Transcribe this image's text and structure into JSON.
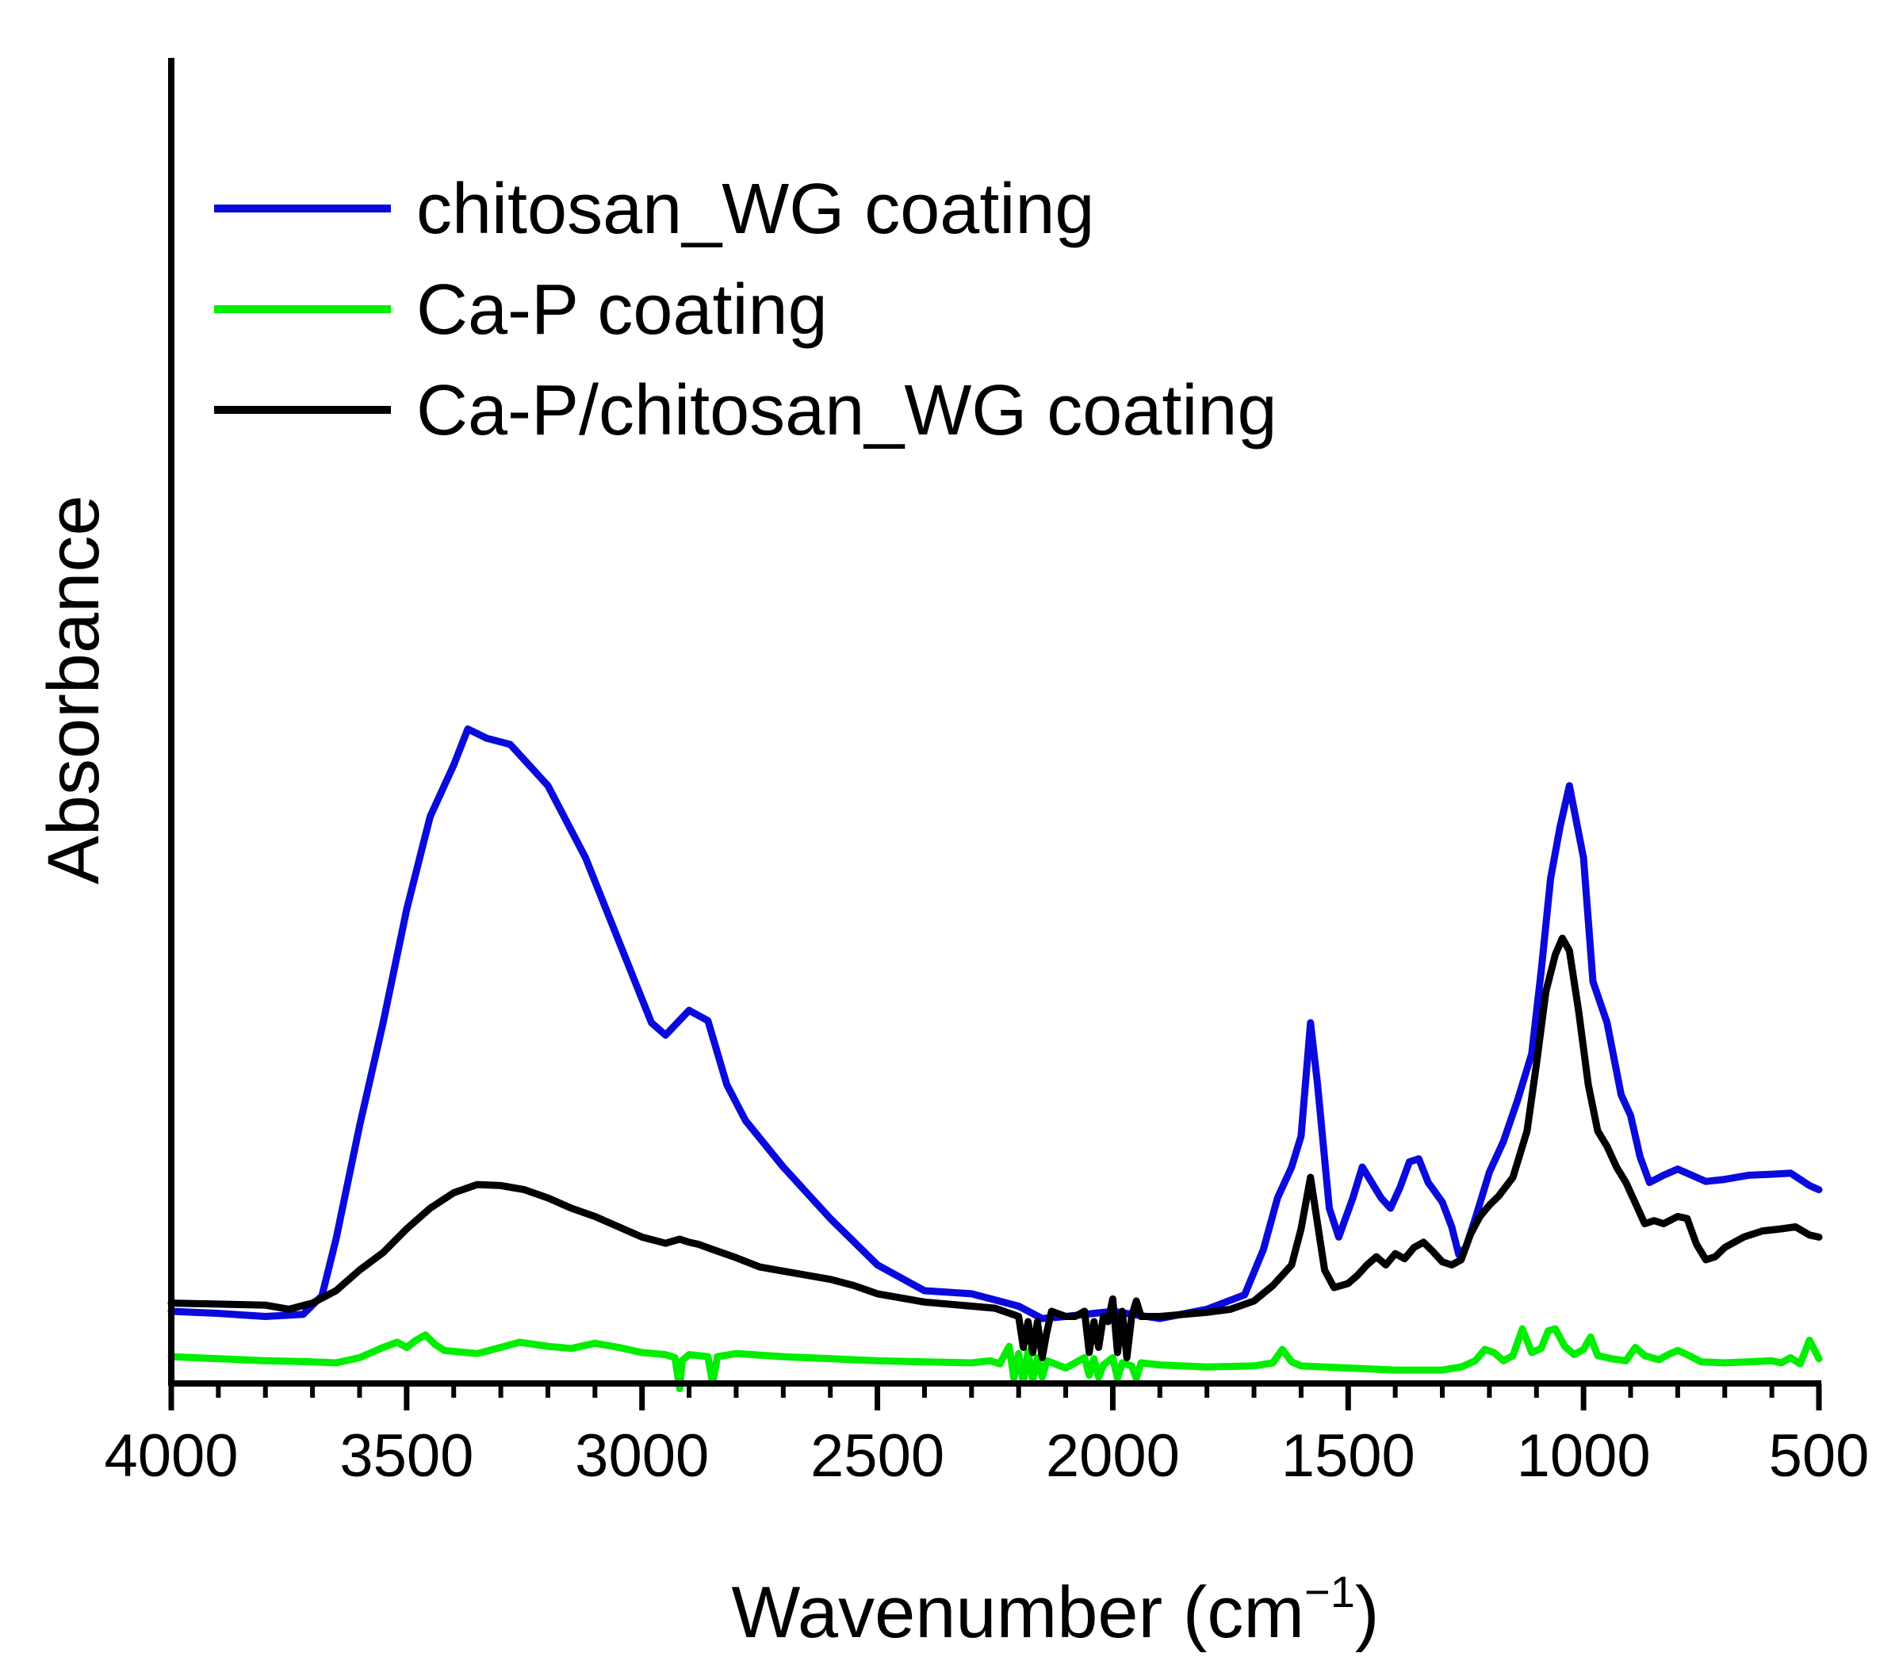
{
  "chart_data": {
    "type": "line",
    "title": "",
    "xlabel": "Wavenumber (cm",
    "xlabel_superscript": "−1",
    "xlabel_close": ")",
    "ylabel": "Absorbance",
    "xlim": [
      4000,
      500
    ],
    "ylim": [
      0,
      100
    ],
    "x_ticks": [
      4000,
      3500,
      3000,
      2500,
      2000,
      1500,
      1000,
      500
    ],
    "y_ticks_visible": false,
    "grid": false,
    "legend_position": "top-left",
    "series": [
      {
        "name": "chitosan_WG coating",
        "color": "#0a0adc",
        "points": [
          [
            4000,
            7.0
          ],
          [
            3900,
            6.8
          ],
          [
            3800,
            6.5
          ],
          [
            3720,
            6.7
          ],
          [
            3680,
            8.5
          ],
          [
            3650,
            14
          ],
          [
            3600,
            25
          ],
          [
            3550,
            35
          ],
          [
            3500,
            46
          ],
          [
            3450,
            55
          ],
          [
            3400,
            60
          ],
          [
            3370,
            63.5
          ],
          [
            3330,
            62.6
          ],
          [
            3280,
            62
          ],
          [
            3200,
            58
          ],
          [
            3120,
            51
          ],
          [
            3050,
            43
          ],
          [
            2980,
            35
          ],
          [
            2950,
            33.8
          ],
          [
            2900,
            36.2
          ],
          [
            2860,
            35.2
          ],
          [
            2820,
            29
          ],
          [
            2780,
            25.5
          ],
          [
            2700,
            21
          ],
          [
            2600,
            16
          ],
          [
            2500,
            11.5
          ],
          [
            2400,
            9
          ],
          [
            2300,
            8.7
          ],
          [
            2200,
            7.5
          ],
          [
            2150,
            6.3
          ],
          [
            2100,
            6.5
          ],
          [
            2000,
            7.0
          ],
          [
            1900,
            6.3
          ],
          [
            1800,
            7.2
          ],
          [
            1720,
            8.6
          ],
          [
            1680,
            13
          ],
          [
            1650,
            18
          ],
          [
            1620,
            21
          ],
          [
            1600,
            24
          ],
          [
            1580,
            35
          ],
          [
            1565,
            29
          ],
          [
            1540,
            17
          ],
          [
            1520,
            14.2
          ],
          [
            1490,
            18
          ],
          [
            1470,
            21
          ],
          [
            1450,
            19.5
          ],
          [
            1430,
            18
          ],
          [
            1410,
            17
          ],
          [
            1390,
            19
          ],
          [
            1370,
            21.5
          ],
          [
            1350,
            21.8
          ],
          [
            1330,
            19.5
          ],
          [
            1300,
            17.6
          ],
          [
            1280,
            15.2
          ],
          [
            1265,
            12.5
          ],
          [
            1250,
            13.2
          ],
          [
            1230,
            16
          ],
          [
            1200,
            20.5
          ],
          [
            1170,
            23.5
          ],
          [
            1140,
            27.5
          ],
          [
            1110,
            32
          ],
          [
            1090,
            40
          ],
          [
            1070,
            49
          ],
          [
            1050,
            54
          ],
          [
            1030,
            58
          ],
          [
            1000,
            51
          ],
          [
            980,
            39
          ],
          [
            950,
            35
          ],
          [
            920,
            28
          ],
          [
            900,
            26
          ],
          [
            880,
            22
          ],
          [
            860,
            19.5
          ],
          [
            830,
            20.2
          ],
          [
            800,
            20.8
          ],
          [
            770,
            20.2
          ],
          [
            740,
            19.6
          ],
          [
            700,
            19.8
          ],
          [
            650,
            20.2
          ],
          [
            600,
            20.3
          ],
          [
            560,
            20.4
          ],
          [
            520,
            19.2
          ],
          [
            500,
            18.8
          ]
        ]
      },
      {
        "name": "Ca-P coating",
        "color": "#00ee00",
        "points": [
          [
            4000,
            2.6
          ],
          [
            3900,
            2.4
          ],
          [
            3800,
            2.2
          ],
          [
            3700,
            2.1
          ],
          [
            3650,
            2.0
          ],
          [
            3600,
            2.5
          ],
          [
            3550,
            3.5
          ],
          [
            3520,
            4.0
          ],
          [
            3500,
            3.5
          ],
          [
            3480,
            4.2
          ],
          [
            3460,
            4.7
          ],
          [
            3440,
            3.8
          ],
          [
            3420,
            3.2
          ],
          [
            3350,
            2.9
          ],
          [
            3300,
            3.5
          ],
          [
            3260,
            4.0
          ],
          [
            3200,
            3.6
          ],
          [
            3150,
            3.4
          ],
          [
            3100,
            3.9
          ],
          [
            3050,
            3.5
          ],
          [
            3000,
            3.0
          ],
          [
            2950,
            2.8
          ],
          [
            2930,
            2.5
          ],
          [
            2920,
            -0.5
          ],
          [
            2915,
            2.2
          ],
          [
            2900,
            2.8
          ],
          [
            2880,
            2.7
          ],
          [
            2860,
            2.6
          ],
          [
            2850,
            0.0
          ],
          [
            2840,
            2.6
          ],
          [
            2800,
            2.9
          ],
          [
            2700,
            2.6
          ],
          [
            2600,
            2.4
          ],
          [
            2500,
            2.2
          ],
          [
            2400,
            2.1
          ],
          [
            2300,
            2.0
          ],
          [
            2260,
            2.2
          ],
          [
            2240,
            1.9
          ],
          [
            2220,
            3.6
          ],
          [
            2210,
            0.5
          ],
          [
            2200,
            2.9
          ],
          [
            2190,
            0.1
          ],
          [
            2180,
            3.1
          ],
          [
            2170,
            0.3
          ],
          [
            2160,
            2.5
          ],
          [
            2150,
            0.6
          ],
          [
            2140,
            2.2
          ],
          [
            2100,
            1.5
          ],
          [
            2060,
            2.5
          ],
          [
            2050,
            0.8
          ],
          [
            2040,
            2.4
          ],
          [
            2030,
            0.6
          ],
          [
            2020,
            1.8
          ],
          [
            2000,
            2.5
          ],
          [
            1990,
            0.5
          ],
          [
            1980,
            2.0
          ],
          [
            1960,
            1.7
          ],
          [
            1950,
            0.5
          ],
          [
            1940,
            2.0
          ],
          [
            1900,
            1.8
          ],
          [
            1800,
            1.6
          ],
          [
            1700,
            1.7
          ],
          [
            1660,
            2.0
          ],
          [
            1640,
            3.3
          ],
          [
            1620,
            2.1
          ],
          [
            1600,
            1.7
          ],
          [
            1500,
            1.5
          ],
          [
            1400,
            1.3
          ],
          [
            1300,
            1.3
          ],
          [
            1260,
            1.6
          ],
          [
            1230,
            2.2
          ],
          [
            1210,
            3.3
          ],
          [
            1190,
            3.0
          ],
          [
            1170,
            2.2
          ],
          [
            1150,
            2.7
          ],
          [
            1130,
            5.3
          ],
          [
            1110,
            3.0
          ],
          [
            1090,
            3.4
          ],
          [
            1075,
            5.1
          ],
          [
            1060,
            5.3
          ],
          [
            1040,
            3.6
          ],
          [
            1020,
            2.8
          ],
          [
            1000,
            3.3
          ],
          [
            985,
            4.5
          ],
          [
            970,
            2.7
          ],
          [
            940,
            2.4
          ],
          [
            910,
            2.2
          ],
          [
            890,
            3.5
          ],
          [
            870,
            2.7
          ],
          [
            840,
            2.3
          ],
          [
            820,
            2.8
          ],
          [
            800,
            3.2
          ],
          [
            780,
            2.8
          ],
          [
            750,
            2.1
          ],
          [
            700,
            2.0
          ],
          [
            650,
            2.1
          ],
          [
            600,
            2.2
          ],
          [
            580,
            2.0
          ],
          [
            560,
            2.5
          ],
          [
            540,
            1.9
          ],
          [
            520,
            4.2
          ],
          [
            500,
            2.4
          ]
        ]
      },
      {
        "name": "Ca-P/chitosan_WG coating",
        "color": "#000000",
        "points": [
          [
            4000,
            7.8
          ],
          [
            3900,
            7.7
          ],
          [
            3800,
            7.6
          ],
          [
            3750,
            7.2
          ],
          [
            3700,
            7.8
          ],
          [
            3650,
            9.0
          ],
          [
            3600,
            11
          ],
          [
            3550,
            12.7
          ],
          [
            3500,
            15
          ],
          [
            3450,
            17
          ],
          [
            3400,
            18.5
          ],
          [
            3350,
            19.3
          ],
          [
            3300,
            19.2
          ],
          [
            3250,
            18.8
          ],
          [
            3200,
            18.0
          ],
          [
            3150,
            17.0
          ],
          [
            3100,
            16.2
          ],
          [
            3050,
            15.2
          ],
          [
            3000,
            14.2
          ],
          [
            2950,
            13.6
          ],
          [
            2920,
            14.0
          ],
          [
            2900,
            13.7
          ],
          [
            2880,
            13.5
          ],
          [
            2850,
            13.0
          ],
          [
            2800,
            12.2
          ],
          [
            2750,
            11.3
          ],
          [
            2700,
            10.9
          ],
          [
            2650,
            10.5
          ],
          [
            2600,
            10.1
          ],
          [
            2550,
            9.5
          ],
          [
            2500,
            8.7
          ],
          [
            2400,
            7.9
          ],
          [
            2300,
            7.5
          ],
          [
            2250,
            7.3
          ],
          [
            2200,
            6.5
          ],
          [
            2190,
            3.5
          ],
          [
            2180,
            6.0
          ],
          [
            2170,
            3.0
          ],
          [
            2160,
            6.0
          ],
          [
            2150,
            2.5
          ],
          [
            2140,
            5.0
          ],
          [
            2130,
            7.0
          ],
          [
            2100,
            6.5
          ],
          [
            2080,
            6.5
          ],
          [
            2060,
            7.0
          ],
          [
            2050,
            3.0
          ],
          [
            2040,
            6.0
          ],
          [
            2030,
            3.5
          ],
          [
            2020,
            6.5
          ],
          [
            2010,
            6.0
          ],
          [
            2000,
            8.2
          ],
          [
            1990,
            3.0
          ],
          [
            1980,
            7.0
          ],
          [
            1970,
            2.5
          ],
          [
            1960,
            6.5
          ],
          [
            1950,
            8.0
          ],
          [
            1940,
            6.5
          ],
          [
            1900,
            6.5
          ],
          [
            1850,
            6.7
          ],
          [
            1800,
            6.9
          ],
          [
            1750,
            7.2
          ],
          [
            1700,
            8.0
          ],
          [
            1660,
            9.5
          ],
          [
            1640,
            10.5
          ],
          [
            1620,
            11.5
          ],
          [
            1600,
            15
          ],
          [
            1580,
            20
          ],
          [
            1570,
            17
          ],
          [
            1550,
            11
          ],
          [
            1530,
            9.3
          ],
          [
            1500,
            9.7
          ],
          [
            1480,
            10.5
          ],
          [
            1460,
            11.5
          ],
          [
            1440,
            12.3
          ],
          [
            1420,
            11.5
          ],
          [
            1400,
            12.6
          ],
          [
            1380,
            12.1
          ],
          [
            1360,
            13.2
          ],
          [
            1340,
            13.7
          ],
          [
            1320,
            12.8
          ],
          [
            1300,
            11.8
          ],
          [
            1280,
            11.5
          ],
          [
            1260,
            12.0
          ],
          [
            1240,
            14.5
          ],
          [
            1220,
            16.2
          ],
          [
            1200,
            17.3
          ],
          [
            1180,
            18.2
          ],
          [
            1150,
            20.0
          ],
          [
            1120,
            24.5
          ],
          [
            1100,
            31
          ],
          [
            1080,
            38
          ],
          [
            1060,
            41.6
          ],
          [
            1045,
            43.2
          ],
          [
            1030,
            42
          ],
          [
            1010,
            36
          ],
          [
            990,
            29
          ],
          [
            970,
            24.5
          ],
          [
            950,
            23
          ],
          [
            930,
            21
          ],
          [
            910,
            19.5
          ],
          [
            890,
            17.5
          ],
          [
            870,
            15.5
          ],
          [
            850,
            15.8
          ],
          [
            830,
            15.5
          ],
          [
            800,
            16.2
          ],
          [
            780,
            16.0
          ],
          [
            760,
            13.5
          ],
          [
            740,
            12.0
          ],
          [
            720,
            12.3
          ],
          [
            700,
            13.2
          ],
          [
            660,
            14.2
          ],
          [
            620,
            14.8
          ],
          [
            580,
            15.0
          ],
          [
            550,
            15.2
          ],
          [
            520,
            14.4
          ],
          [
            500,
            14.2
          ]
        ]
      }
    ]
  }
}
